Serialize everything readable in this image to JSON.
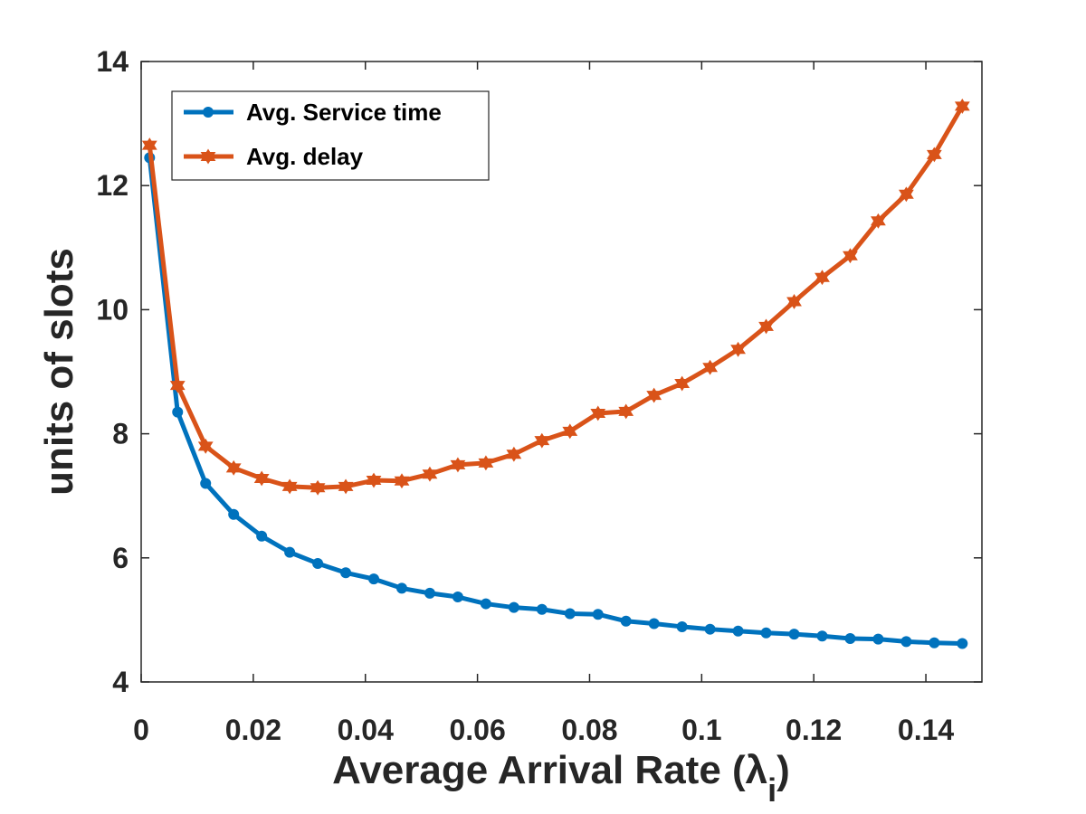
{
  "chart_data": {
    "type": "line",
    "title": "",
    "xlabel": "Average Arrival Rate (λ",
    "xlabel_subscript": "i",
    "xlabel_suffix": ")",
    "ylabel": "units of slots",
    "xlim": [
      0,
      0.15
    ],
    "ylim": [
      4,
      14
    ],
    "xticks": [
      0,
      0.02,
      0.04,
      0.06,
      0.08,
      0.1,
      0.12,
      0.14
    ],
    "xtick_labels": [
      "0",
      "0.02",
      "0.04",
      "0.06",
      "0.08",
      "0.1",
      "0.12",
      "0.14"
    ],
    "yticks": [
      4,
      6,
      8,
      10,
      12,
      14
    ],
    "ytick_labels": [
      "4",
      "6",
      "8",
      "10",
      "12",
      "14"
    ],
    "grid": false,
    "legend_position": "top-left",
    "x": [
      0.0015,
      0.0065,
      0.0115,
      0.0165,
      0.0215,
      0.0265,
      0.0315,
      0.0365,
      0.0415,
      0.0465,
      0.0515,
      0.0565,
      0.0615,
      0.0665,
      0.0715,
      0.0765,
      0.0815,
      0.0865,
      0.0915,
      0.0965,
      0.1015,
      0.1065,
      0.1115,
      0.1165,
      0.1215,
      0.1265,
      0.1315,
      0.1365,
      0.1415,
      0.1465
    ],
    "series": [
      {
        "name": "Avg. Service time",
        "color": "#0072BD",
        "marker": "circle",
        "values": [
          12.45,
          8.35,
          7.2,
          6.7,
          6.35,
          6.09,
          5.91,
          5.76,
          5.66,
          5.51,
          5.43,
          5.37,
          5.26,
          5.2,
          5.17,
          5.1,
          5.09,
          4.98,
          4.94,
          4.89,
          4.85,
          4.82,
          4.79,
          4.77,
          4.74,
          4.7,
          4.69,
          4.65,
          4.63,
          4.62
        ]
      },
      {
        "name": "Avg. delay",
        "color": "#D95319",
        "marker": "triangle",
        "values": [
          12.65,
          8.78,
          7.8,
          7.45,
          7.28,
          7.15,
          7.13,
          7.15,
          7.25,
          7.24,
          7.35,
          7.5,
          7.53,
          7.67,
          7.89,
          8.04,
          8.33,
          8.36,
          8.62,
          8.81,
          9.07,
          9.36,
          9.73,
          10.13,
          10.52,
          10.87,
          11.43,
          11.86,
          12.5,
          13.28
        ]
      }
    ]
  }
}
